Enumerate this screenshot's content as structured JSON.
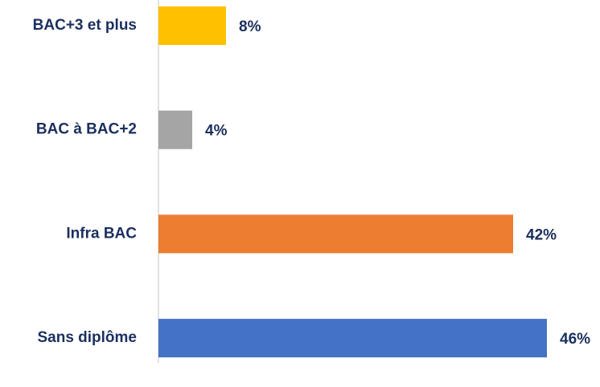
{
  "chart_data": {
    "type": "bar",
    "orientation": "horizontal",
    "categories": [
      "BAC+3 et plus",
      "BAC à BAC+2",
      "Infra BAC",
      "Sans diplôme"
    ],
    "values": [
      8,
      4,
      42,
      46
    ],
    "value_labels": [
      "8%",
      "4%",
      "42%",
      "46%"
    ],
    "colors": [
      "#ffc000",
      "#a5a5a5",
      "#ed7d31",
      "#4472c4"
    ]
  }
}
